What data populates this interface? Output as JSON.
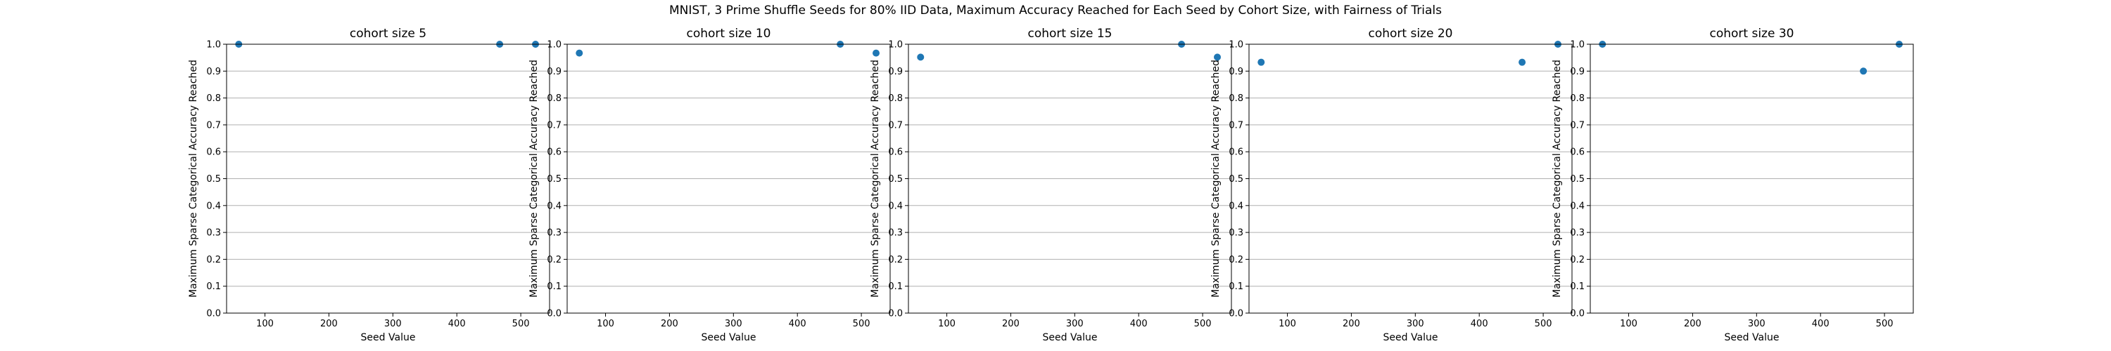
{
  "figure": {
    "title": "MNIST, 3 Prime Shuffle Seeds for 80% IID Data, Maximum Accuracy Reached for Each Seed by Cohort Size, with Fairness of Trials"
  },
  "chart_data": [
    {
      "type": "scatter",
      "title": "cohort size 5",
      "xlabel": "Seed Value",
      "ylabel": "Maximum Sparse Categorical Accuracy Reached",
      "xlim": [
        40,
        545
      ],
      "ylim": [
        0.0,
        1.0
      ],
      "xticks": [
        100,
        200,
        300,
        400,
        500
      ],
      "yticks": [
        0.0,
        0.1,
        0.2,
        0.3,
        0.4,
        0.5,
        0.6,
        0.7,
        0.8,
        0.9,
        1.0
      ],
      "grid": "y",
      "color": "#1f77b4",
      "x": [
        59,
        467,
        523
      ],
      "y": [
        1.0,
        1.0,
        1.0
      ]
    },
    {
      "type": "scatter",
      "title": "cohort size 10",
      "xlabel": "Seed Value",
      "ylabel": "Maximum Sparse Categorical Accuracy Reached",
      "xlim": [
        40,
        545
      ],
      "ylim": [
        0.0,
        1.0
      ],
      "xticks": [
        100,
        200,
        300,
        400,
        500
      ],
      "yticks": [
        0.0,
        0.1,
        0.2,
        0.3,
        0.4,
        0.5,
        0.6,
        0.7,
        0.8,
        0.9,
        1.0
      ],
      "grid": "y",
      "color": "#1f77b4",
      "x": [
        59,
        467,
        523
      ],
      "y": [
        0.967,
        1.0,
        0.967
      ]
    },
    {
      "type": "scatter",
      "title": "cohort size 15",
      "xlabel": "Seed Value",
      "ylabel": "Maximum Sparse Categorical Accuracy Reached",
      "xlim": [
        40,
        545
      ],
      "ylim": [
        0.0,
        1.0
      ],
      "xticks": [
        100,
        200,
        300,
        400,
        500
      ],
      "yticks": [
        0.0,
        0.1,
        0.2,
        0.3,
        0.4,
        0.5,
        0.6,
        0.7,
        0.8,
        0.9,
        1.0
      ],
      "grid": "y",
      "color": "#1f77b4",
      "x": [
        59,
        467,
        523
      ],
      "y": [
        0.952,
        1.0,
        0.952
      ]
    },
    {
      "type": "scatter",
      "title": "cohort size 20",
      "xlabel": "Seed Value",
      "ylabel": "Maximum Sparse Categorical Accuracy Reached",
      "xlim": [
        40,
        545
      ],
      "ylim": [
        0.0,
        1.0
      ],
      "xticks": [
        100,
        200,
        300,
        400,
        500
      ],
      "yticks": [
        0.0,
        0.1,
        0.2,
        0.3,
        0.4,
        0.5,
        0.6,
        0.7,
        0.8,
        0.9,
        1.0
      ],
      "grid": "y",
      "color": "#1f77b4",
      "x": [
        59,
        467,
        523
      ],
      "y": [
        0.933,
        0.933,
        1.0
      ]
    },
    {
      "type": "scatter",
      "title": "cohort size 30",
      "xlabel": "Seed Value",
      "ylabel": "Maximum Sparse Categorical Accuracy Reached",
      "xlim": [
        40,
        545
      ],
      "ylim": [
        0.0,
        1.0
      ],
      "xticks": [
        100,
        200,
        300,
        400,
        500
      ],
      "yticks": [
        0.0,
        0.1,
        0.2,
        0.3,
        0.4,
        0.5,
        0.6,
        0.7,
        0.8,
        0.9,
        1.0
      ],
      "grid": "y",
      "color": "#1f77b4",
      "x": [
        59,
        467,
        523
      ],
      "y": [
        1.0,
        0.9,
        1.0
      ]
    }
  ]
}
